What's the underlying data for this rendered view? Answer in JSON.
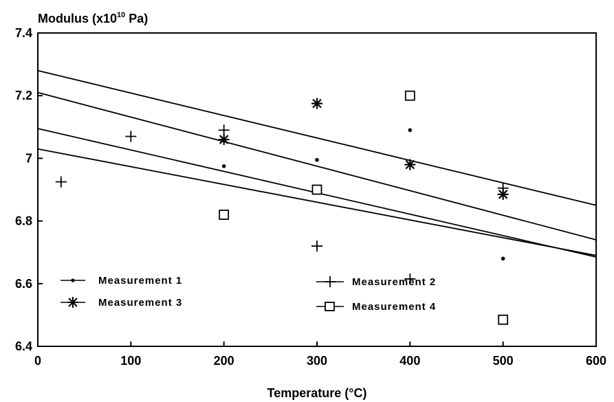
{
  "chart_data": {
    "type": "scatter",
    "title": "",
    "ylabel": "Modulus (x10",
    "ylabel_exponent": "10",
    "ylabel_unit": " Pa)",
    "xlabel": "Temperature (°C)",
    "xlim": [
      0,
      600
    ],
    "ylim": [
      6.4,
      7.4
    ],
    "xticks": [
      "0",
      "100",
      "200",
      "300",
      "400",
      "500",
      "600"
    ],
    "yticks": [
      "6.4",
      "6.6",
      "6.8",
      "7",
      "7.2",
      "7.4"
    ],
    "grid": false,
    "legend_position": "bottom-left",
    "series": [
      {
        "name": "Measurement 1",
        "marker": "dot",
        "points": [
          [
            200,
            6.975
          ],
          [
            300,
            6.995
          ],
          [
            400,
            7.09
          ],
          [
            500,
            6.68
          ]
        ],
        "fit_line": [
          [
            0,
            7.095
          ],
          [
            600,
            6.685
          ]
        ]
      },
      {
        "name": "Measurement 2",
        "marker": "plus",
        "points": [
          [
            25,
            6.925
          ],
          [
            100,
            7.07
          ],
          [
            200,
            7.09
          ],
          [
            300,
            6.72
          ],
          [
            400,
            6.615
          ],
          [
            500,
            6.905
          ]
        ],
        "fit_line": [
          [
            0,
            7.03
          ],
          [
            600,
            6.69
          ]
        ]
      },
      {
        "name": "Measurement 3",
        "marker": "asterisk",
        "points": [
          [
            200,
            7.06
          ],
          [
            300,
            7.175
          ],
          [
            400,
            6.98
          ],
          [
            500,
            6.885
          ]
        ],
        "fit_line": [
          [
            0,
            7.28
          ],
          [
            600,
            6.85
          ]
        ]
      },
      {
        "name": "Measurement 4",
        "marker": "square",
        "points": [
          [
            200,
            6.82
          ],
          [
            300,
            6.9
          ],
          [
            400,
            7.2
          ],
          [
            500,
            6.485
          ]
        ],
        "fit_line": [
          [
            0,
            7.21
          ],
          [
            600,
            6.74
          ]
        ]
      }
    ]
  }
}
